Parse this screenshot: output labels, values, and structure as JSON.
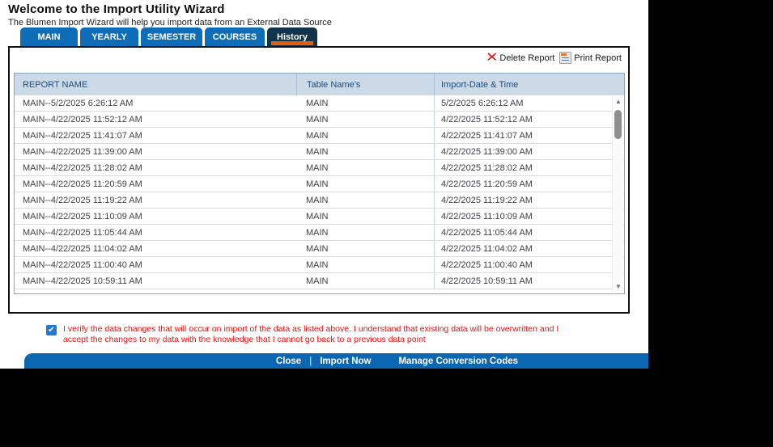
{
  "header": {
    "title": "Welcome to the Import Utility Wizard",
    "subtitle": "The Blumen Import Wizard will help you import data from an External Data Source"
  },
  "tabs": [
    {
      "label": "MAIN",
      "active": false
    },
    {
      "label": "YEARLY",
      "active": false
    },
    {
      "label": "SEMESTER",
      "active": false
    },
    {
      "label": "COURSES",
      "active": false
    },
    {
      "label": "History",
      "active": true
    }
  ],
  "toolbar": {
    "delete_label": "Delete Report",
    "print_label": "Print Report",
    "delete_icon": "x-icon",
    "print_icon": "report-icon"
  },
  "table": {
    "columns": [
      "REPORT NAME",
      "Table Name's",
      "Import-Date & Time"
    ],
    "rows": [
      {
        "report_name": "MAIN--5/2/2025 6:26:12 AM",
        "table_name": "MAIN",
        "import_date": "5/2/2025 6:26:12 AM"
      },
      {
        "report_name": "MAIN--4/22/2025 11:52:12 AM",
        "table_name": "MAIN",
        "import_date": "4/22/2025 11:52:12 AM"
      },
      {
        "report_name": "MAIN--4/22/2025 11:41:07 AM",
        "table_name": "MAIN",
        "import_date": "4/22/2025 11:41:07 AM"
      },
      {
        "report_name": "MAIN--4/22/2025 11:39:00 AM",
        "table_name": "MAIN",
        "import_date": "4/22/2025 11:39:00 AM"
      },
      {
        "report_name": "MAIN--4/22/2025 11:28:02 AM",
        "table_name": "MAIN",
        "import_date": "4/22/2025 11:28:02 AM"
      },
      {
        "report_name": "MAIN--4/22/2025 11:20:59 AM",
        "table_name": "MAIN",
        "import_date": "4/22/2025 11:20:59 AM"
      },
      {
        "report_name": "MAIN--4/22/2025 11:19:22 AM",
        "table_name": "MAIN",
        "import_date": "4/22/2025 11:19:22 AM"
      },
      {
        "report_name": "MAIN--4/22/2025 11:10:09 AM",
        "table_name": "MAIN",
        "import_date": "4/22/2025 11:10:09 AM"
      },
      {
        "report_name": "MAIN--4/22/2025 11:05:44 AM",
        "table_name": "MAIN",
        "import_date": "4/22/2025 11:05:44 AM"
      },
      {
        "report_name": "MAIN--4/22/2025 11:04:02 AM",
        "table_name": "MAIN",
        "import_date": "4/22/2025 11:04:02 AM"
      },
      {
        "report_name": "MAIN--4/22/2025 11:00:40 AM",
        "table_name": "MAIN",
        "import_date": "4/22/2025 11:00:40 AM"
      },
      {
        "report_name": "MAIN--4/22/2025 10:59:11 AM",
        "table_name": "MAIN",
        "import_date": "4/22/2025 10:59:11 AM"
      }
    ]
  },
  "scrollbar": {
    "up_glyph": "▲",
    "down_glyph": "▼"
  },
  "confirmation": {
    "checked": true,
    "check_glyph": "✔",
    "text": "I verify the data changes that will occur on import of the data as listed above. I understand that existing data will be overwritten and I accept the changes to my data with the knowledge that I cannot go back to a previous data point"
  },
  "footer": {
    "close_label": "Close",
    "separator": "|",
    "import_label": "Import Now",
    "manage_label": "Manage Conversion Codes"
  },
  "colors": {
    "tab_blue": "#0e6db6",
    "tab_active_navy": "#12344a",
    "tab_indicator_orange": "#e65c0f",
    "table_header_bg": "#ccd9e7",
    "table_header_text": "#1e4d7b",
    "row_text": "#3f3f46",
    "warning_red": "#ff0b0b",
    "footer_blue": "#0b67b2",
    "delete_x_red": "#e11212"
  }
}
